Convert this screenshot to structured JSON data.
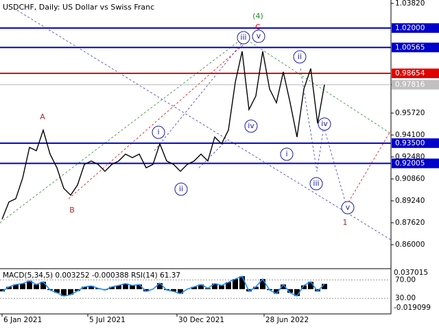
{
  "chart_data": {
    "type": "line",
    "title": "USDCHF, Daily:  US Dollar vs Swiss Franc",
    "series": [
      {
        "name": "USDCHF",
        "color": "#000000",
        "values": [
          0.8788,
          0.8915,
          0.894,
          0.9092,
          0.9319,
          0.9294,
          0.9446,
          0.9269,
          0.9168,
          0.9016,
          0.8966,
          0.9041,
          0.9193,
          0.9218,
          0.9193,
          0.9142,
          0.9193,
          0.9218,
          0.9269,
          0.9243,
          0.9269,
          0.9168,
          0.9193,
          0.9345,
          0.9218,
          0.9193,
          0.9142,
          0.9193,
          0.9218,
          0.9269,
          0.9218,
          0.9395,
          0.9345,
          0.9446,
          0.98,
          1.0028,
          0.9598,
          0.9699,
          1.0028,
          0.975,
          0.9648,
          0.9876,
          0.9648,
          0.9395,
          0.975,
          0.9901,
          0.9496,
          0.9782
        ]
      }
    ],
    "ylim": [
      0.8423,
      1.0407
    ],
    "yticks": [
      {
        "value": 1.0382,
        "label": "1.03820"
      },
      {
        "value": 0.97816,
        "label": "0.97816"
      },
      {
        "value": 0.9572,
        "label": "0.95720"
      },
      {
        "value": 0.941,
        "label": "0.94100"
      },
      {
        "value": 0.9248,
        "label": "0.92480"
      },
      {
        "value": 0.9086,
        "label": "0.90860"
      },
      {
        "value": 0.8924,
        "label": "0.89240"
      },
      {
        "value": 0.8762,
        "label": "0.87620"
      },
      {
        "value": 0.86,
        "label": "0.86000"
      }
    ],
    "levels": [
      {
        "value": 1.02,
        "label": "1.02000",
        "color": "#0000cc"
      },
      {
        "value": 1.00565,
        "label": "1.00565",
        "color": "#0000cc"
      },
      {
        "value": 0.98654,
        "label": "0.98654",
        "color": "#e00000"
      },
      {
        "value": 0.935,
        "label": "0.93500",
        "color": "#0000cc"
      },
      {
        "value": 0.92005,
        "label": "0.92005",
        "color": "#0000cc"
      }
    ],
    "xlim": [
      0,
      57
    ],
    "xticks": [
      {
        "value": 0,
        "label": "6 Jan 2021"
      },
      {
        "value": 12.5,
        "label": "5 Jul 2021"
      },
      {
        "value": 25.5,
        "label": "30 Dec 2021"
      },
      {
        "value": 38.2,
        "label": "28 Jun 2022"
      }
    ],
    "annotations": [
      "(4)",
      "C",
      "A",
      "B",
      "iii",
      "v",
      "ii",
      "iv",
      "i",
      "ii",
      "i",
      "iv",
      "iii",
      "v",
      "1"
    ],
    "indicator": {
      "label": "MACD(5,34,5) 0.003252 -0.000388 RSI(14) 61.37",
      "rsi_color": "#1e90ff",
      "rsi": [
        45,
        55,
        60,
        62,
        68,
        60,
        66,
        48,
        42,
        35,
        38,
        46,
        55,
        57,
        52,
        48,
        55,
        58,
        62,
        58,
        60,
        45,
        50,
        63,
        48,
        45,
        40,
        50,
        55,
        60,
        52,
        62,
        58,
        65,
        72,
        78,
        45,
        55,
        72,
        48,
        40,
        60,
        42,
        35,
        58,
        66,
        45,
        61.37
      ],
      "ylim": [
        -4,
        93
      ],
      "yticks": [
        {
          "value": 70,
          "label": "70.00"
        },
        {
          "value": 30,
          "label": "30.00"
        }
      ],
      "range_labels": [
        "0.037015",
        "-0.019099"
      ]
    }
  }
}
